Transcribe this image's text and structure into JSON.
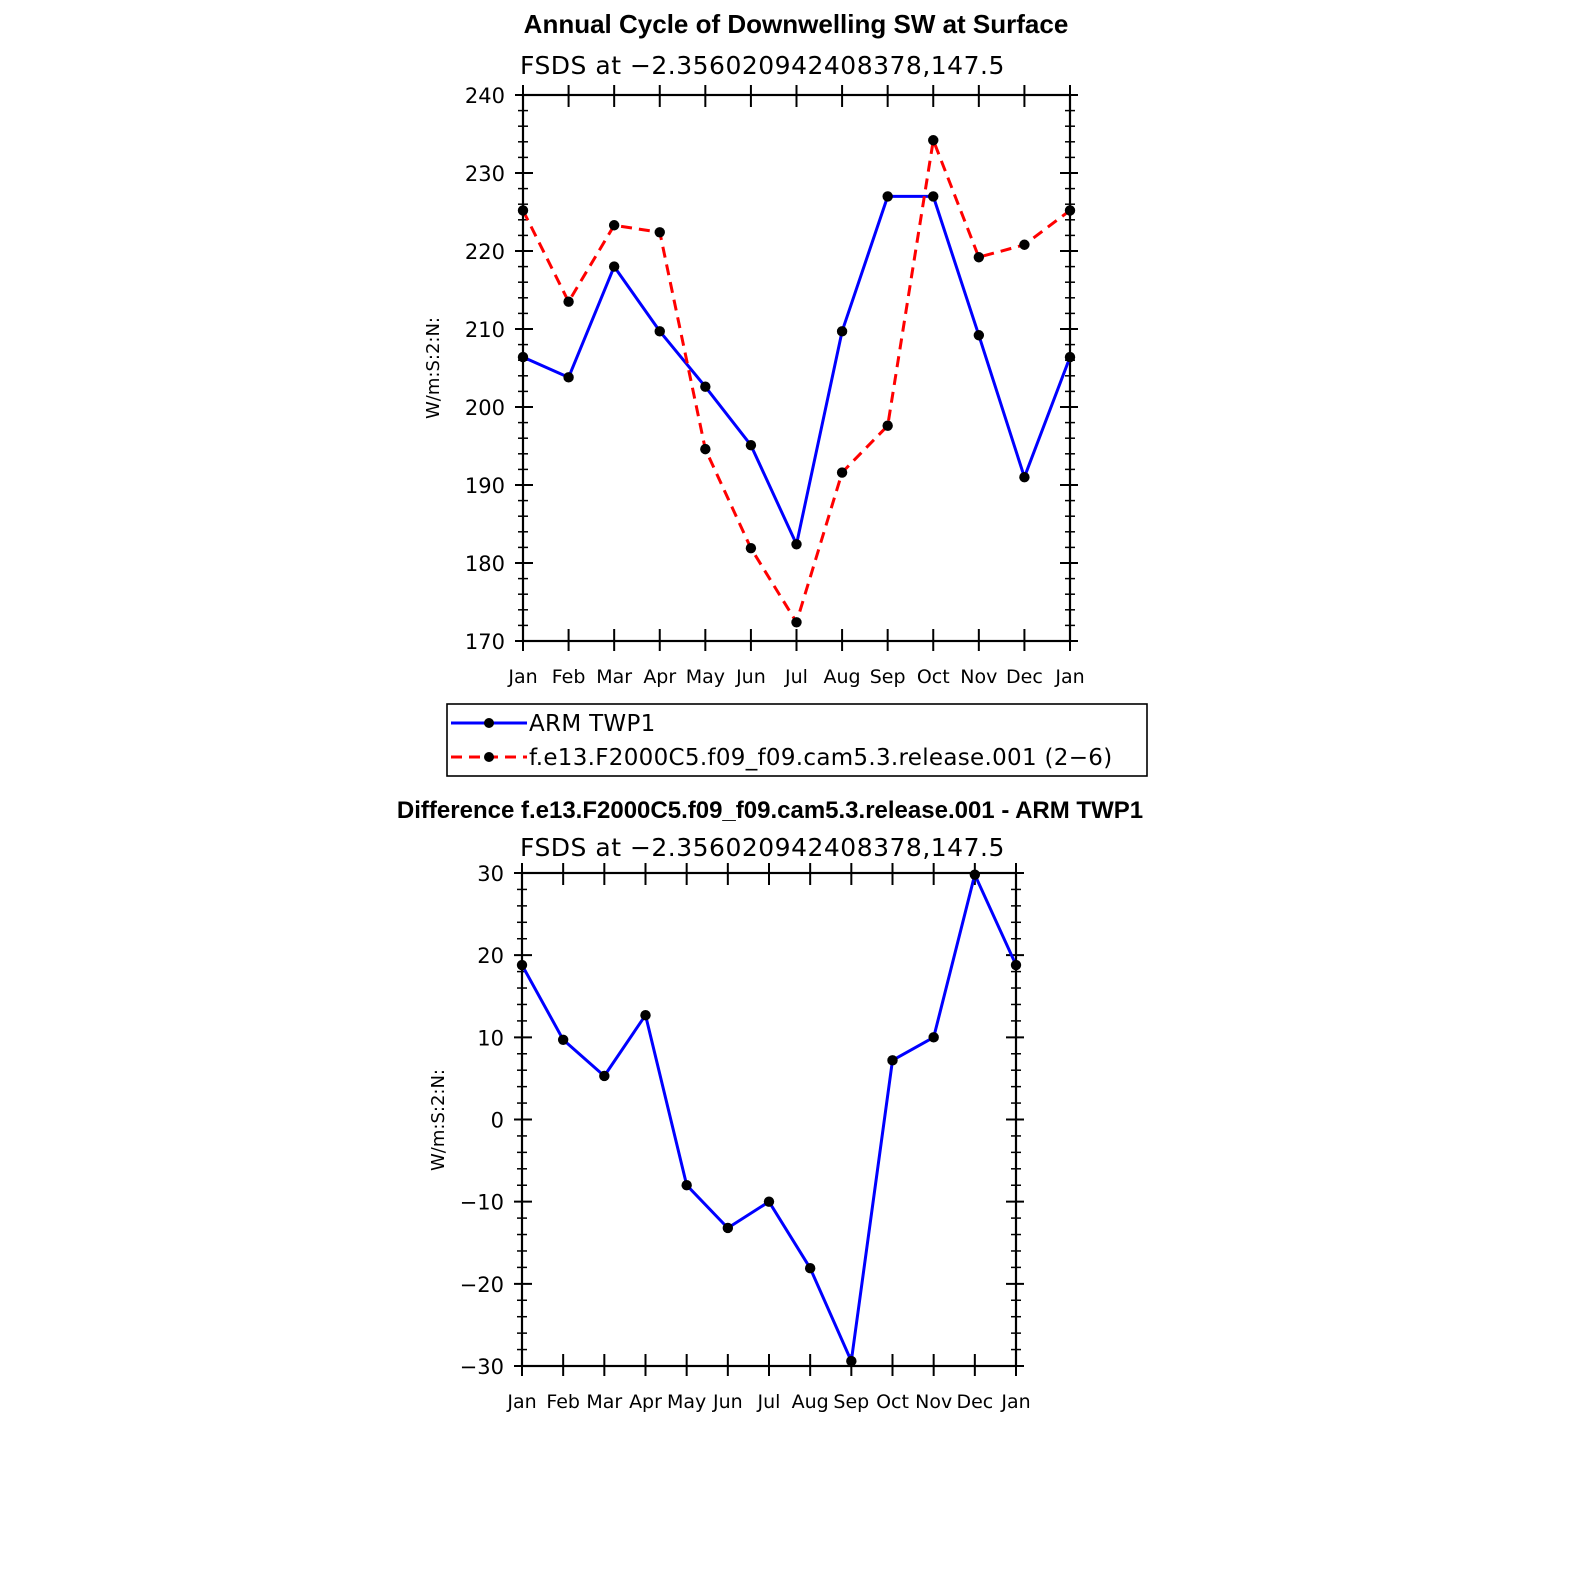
{
  "chart_data": [
    {
      "type": "line",
      "title": "Annual Cycle of Downwelling SW at Surface",
      "subtitle": "FSDS at −2.356020942408378,147.5",
      "ylabel": "W/m:S:2:N:",
      "xlabel": "",
      "categories": [
        "Jan",
        "Feb",
        "Mar",
        "Apr",
        "May",
        "Jun",
        "Jul",
        "Aug",
        "Sep",
        "Oct",
        "Nov",
        "Dec",
        "Jan"
      ],
      "ylim": [
        170,
        240
      ],
      "yticks": [
        "170",
        "180",
        "190",
        "200",
        "210",
        "220",
        "230",
        "240"
      ],
      "series": [
        {
          "name": "ARM TWP1",
          "color": "#0000ff",
          "style": "solid",
          "values": [
            206.4,
            203.8,
            218.0,
            209.7,
            202.6,
            195.1,
            182.4,
            209.7,
            227.0,
            227.0,
            209.2,
            191.0,
            206.4
          ]
        },
        {
          "name": "f.e13.F2000C5.f09_f09.cam5.3.release.001 (2−6)",
          "color": "#ff0000",
          "style": "dashed",
          "values": [
            225.2,
            213.5,
            223.3,
            222.4,
            194.6,
            181.9,
            172.4,
            191.6,
            197.6,
            234.2,
            219.2,
            220.8,
            225.2
          ]
        }
      ],
      "legend": "bottom"
    },
    {
      "type": "line",
      "title": "Difference f.e13.F2000C5.f09_f09.cam5.3.release.001 - ARM TWP1",
      "subtitle": "FSDS at −2.356020942408378,147.5",
      "ylabel": "W/m:S:2:N:",
      "xlabel": "",
      "categories": [
        "Jan",
        "Feb",
        "Mar",
        "Apr",
        "May",
        "Jun",
        "Jul",
        "Aug",
        "Sep",
        "Oct",
        "Nov",
        "Dec",
        "Jan"
      ],
      "ylim": [
        -30,
        30
      ],
      "yticks": [
        "−30",
        "−20",
        "−10",
        "0",
        "10",
        "20",
        "30"
      ],
      "series": [
        {
          "color": "#0000ff",
          "style": "solid",
          "values": [
            18.8,
            9.7,
            5.3,
            12.7,
            -8.0,
            -13.2,
            -10.0,
            -18.1,
            -29.4,
            7.2,
            10.0,
            29.8,
            18.8
          ]
        }
      ]
    }
  ]
}
